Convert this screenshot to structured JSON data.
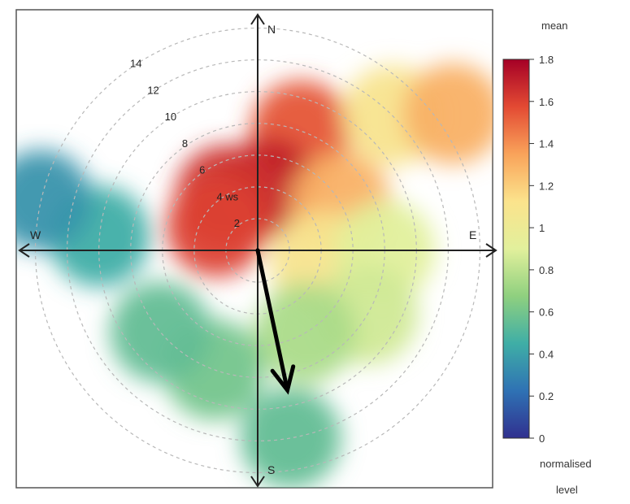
{
  "chart_data": {
    "type": "polar",
    "title": "",
    "directions": {
      "north": "N",
      "east": "E",
      "south": "S",
      "west": "W"
    },
    "radial_axis": {
      "unit": "ws",
      "ticks": [
        2,
        4,
        6,
        8,
        10,
        12,
        14
      ],
      "tick_labels": [
        "2",
        "4 ws",
        "6",
        "8",
        "10",
        "12",
        "14"
      ],
      "max": 15,
      "grid": true
    },
    "color_scale": {
      "statistic": "mean",
      "label_lines": [
        "normalised",
        "level"
      ],
      "min": 0,
      "max": 1.8,
      "ticks": [
        0,
        0.2,
        0.4,
        0.6,
        0.8,
        1,
        1.2,
        1.4,
        1.6,
        1.8
      ],
      "tick_labels": [
        "0",
        "0.2",
        "0.4",
        "0.6",
        "0.8",
        "1",
        "1.2",
        "1.4",
        "1.6",
        "1.8"
      ],
      "palette": [
        "#30308f",
        "#2f72b4",
        "#3faea6",
        "#8fd07f",
        "#e2f09c",
        "#fbe38c",
        "#f9a35a",
        "#e34a33",
        "#a50026"
      ]
    },
    "trend_arrow": {
      "direction_deg": 168,
      "magnitude_ws": 9
    },
    "cells": [
      {
        "dir_deg": 20,
        "ws": 8,
        "value": 1.55
      },
      {
        "dir_deg": 10,
        "ws": 4,
        "value": 1.7
      },
      {
        "dir_deg": 330,
        "ws": 4,
        "value": 1.65
      },
      {
        "dir_deg": 300,
        "ws": 3,
        "value": 1.6
      },
      {
        "dir_deg": 60,
        "ws": 6,
        "value": 1.3
      },
      {
        "dir_deg": 100,
        "ws": 4,
        "value": 1.1
      },
      {
        "dir_deg": 45,
        "ws": 12,
        "value": 1.1
      },
      {
        "dir_deg": 55,
        "ws": 15,
        "value": 1.3
      },
      {
        "dir_deg": 90,
        "ws": 8,
        "value": 0.9
      },
      {
        "dir_deg": 120,
        "ws": 8,
        "value": 0.85
      },
      {
        "dir_deg": 150,
        "ws": 6,
        "value": 0.75
      },
      {
        "dir_deg": 170,
        "ws": 12,
        "value": 0.55
      },
      {
        "dir_deg": 200,
        "ws": 8,
        "value": 0.6
      },
      {
        "dir_deg": 230,
        "ws": 8,
        "value": 0.55
      },
      {
        "dir_deg": 275,
        "ws": 10,
        "value": 0.45
      },
      {
        "dir_deg": 283,
        "ws": 14,
        "value": 0.35
      }
    ]
  }
}
